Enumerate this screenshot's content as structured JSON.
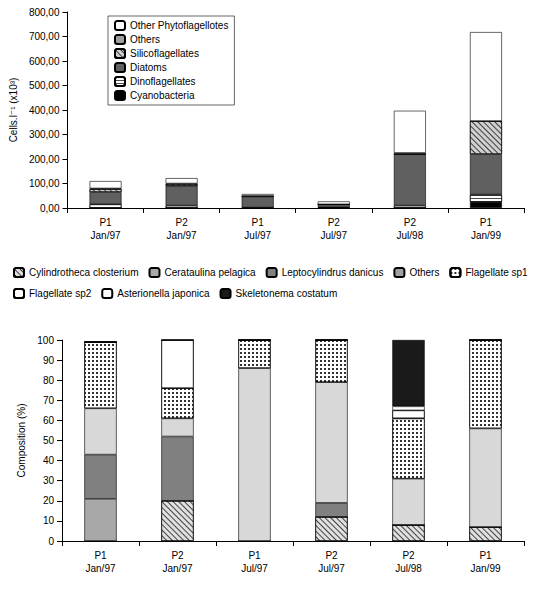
{
  "chart_data": [
    {
      "type": "bar",
      "stacked": true,
      "legend": "upper left",
      "y_label": "Cells.l⁻¹ (x10³)",
      "categories": [
        "P1\nJan/97",
        "P2\nJan/97",
        "P1\nJul/97",
        "P2\nJul/97",
        "P2\nJul/98",
        "P1\nJan/99"
      ],
      "series": [
        {
          "name": "Cyanobacteria",
          "color": "#000000",
          "values": [
            0,
            0,
            0,
            0,
            0,
            25
          ]
        },
        {
          "name": "Dinoflagellates",
          "color": "#ffffff",
          "values": [
            15,
            10,
            2,
            3,
            10,
            30
          ]
        },
        {
          "name": "Diatoms",
          "color": "#606060",
          "values": [
            50,
            80,
            45,
            12,
            210,
            165
          ]
        },
        {
          "name": "Silicoflagellates",
          "color": "#d0d0d0",
          "values": [
            12,
            8,
            0,
            0,
            0,
            135
          ]
        },
        {
          "name": "Others",
          "color": "#a0a0a0",
          "values": [
            3,
            2,
            3,
            0,
            5,
            0
          ]
        },
        {
          "name": "Other Phytoflagellotes",
          "color": "#ffffff",
          "values": [
            30,
            22,
            7,
            12,
            172,
            363
          ]
        }
      ],
      "ylim": [
        0,
        800
      ],
      "yticks": [
        {
          "value": 0,
          "label": "0,00"
        },
        {
          "value": 100,
          "label": "100,00"
        },
        {
          "value": 200,
          "label": "200,00"
        },
        {
          "value": 300,
          "label": "300,00"
        },
        {
          "value": 400,
          "label": "400,00"
        },
        {
          "value": 500,
          "label": "500,00"
        },
        {
          "value": 600,
          "label": "600,00"
        },
        {
          "value": 700,
          "label": "700,00"
        },
        {
          "value": 800,
          "label": "800,00"
        }
      ],
      "grid": false
    },
    {
      "type": "bar",
      "stacked": true,
      "legend": "top",
      "y_label": "Composition (%)",
      "categories": [
        "P1\nJan/97",
        "P2\nJan/97",
        "P1\nJul/97",
        "P2\nJul/97",
        "P2\nJul/98",
        "P1\nJan/99"
      ],
      "series": [
        {
          "name": "Cylindrotheca closterium",
          "color": "#e0e0e0",
          "values": [
            0,
            20,
            0,
            12,
            8,
            7
          ]
        },
        {
          "name": "Cerataulina pelagica",
          "color": "#a8a8a8",
          "values": [
            21,
            0,
            0,
            0,
            0,
            0
          ]
        },
        {
          "name": "Leptocylindrus danicus",
          "color": "#808080",
          "values": [
            22,
            32,
            0,
            7,
            0,
            0
          ]
        },
        {
          "name": "Others",
          "color": "#d8d8d8",
          "values": [
            23,
            9,
            86,
            60,
            23,
            49
          ]
        },
        {
          "name": "Flagellate sp1",
          "color": "#ffffff",
          "values": [
            33,
            15,
            14,
            21,
            30,
            44
          ]
        },
        {
          "name": "Flagellate sp2",
          "color": "#ffffff",
          "values": [
            0,
            24,
            0,
            0,
            4,
            0
          ]
        },
        {
          "name": "Asterionella japonica",
          "color": "#ffffff",
          "values": [
            0,
            0,
            0,
            0,
            2,
            0
          ]
        },
        {
          "name": "Skeletonema costatum",
          "color": "#1a1a1a",
          "values": [
            0,
            0,
            0,
            0,
            33,
            0
          ]
        }
      ],
      "ylim": [
        0,
        100
      ],
      "yticks": [
        0,
        10,
        20,
        30,
        40,
        50,
        60,
        70,
        80,
        90,
        100
      ],
      "grid": false
    }
  ]
}
